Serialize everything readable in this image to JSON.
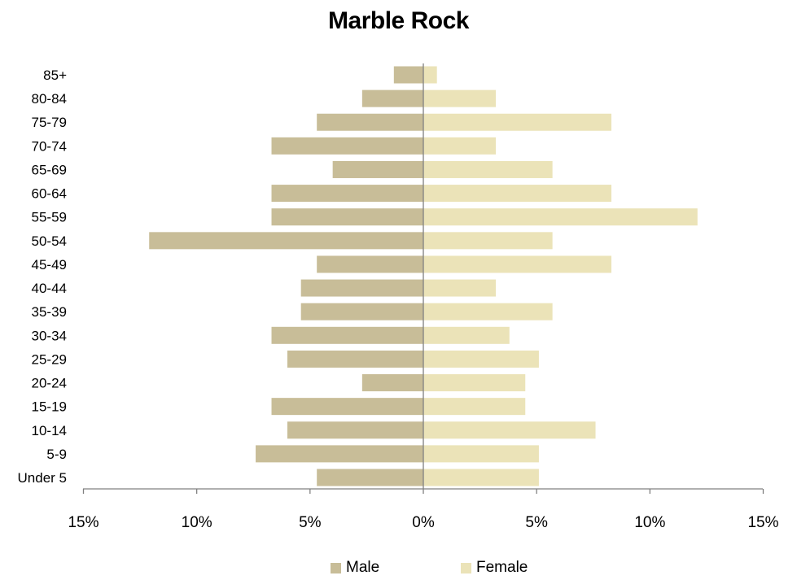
{
  "chart_data": {
    "type": "bar",
    "orientation": "horizontal-population-pyramid",
    "title": "Marble Rock",
    "categories": [
      "Under 5",
      "5-9",
      "10-14",
      "15-19",
      "20-24",
      "25-29",
      "30-34",
      "35-39",
      "40-44",
      "45-49",
      "50-54",
      "55-59",
      "60-64",
      "65-69",
      "70-74",
      "75-79",
      "80-84",
      "85+"
    ],
    "series": [
      {
        "name": "Male",
        "color": "#c8bd98",
        "values": [
          4.7,
          7.4,
          6.0,
          6.7,
          2.7,
          6.0,
          6.7,
          5.4,
          5.4,
          4.7,
          12.1,
          6.7,
          6.7,
          4.0,
          6.7,
          4.7,
          2.7,
          1.3
        ]
      },
      {
        "name": "Female",
        "color": "#ebe3b8",
        "values": [
          5.1,
          5.1,
          7.6,
          4.5,
          4.5,
          5.1,
          3.8,
          5.7,
          3.2,
          8.3,
          5.7,
          12.1,
          8.3,
          5.7,
          3.2,
          8.3,
          3.2,
          0.6
        ]
      }
    ],
    "xlim": [
      -15,
      15
    ],
    "xticks": [
      -15,
      -10,
      -5,
      0,
      5,
      10,
      15
    ],
    "xtick_labels": [
      "15%",
      "10%",
      "5%",
      "0%",
      "5%",
      "10%",
      "15%"
    ],
    "legend_position": "bottom",
    "grid": false
  }
}
